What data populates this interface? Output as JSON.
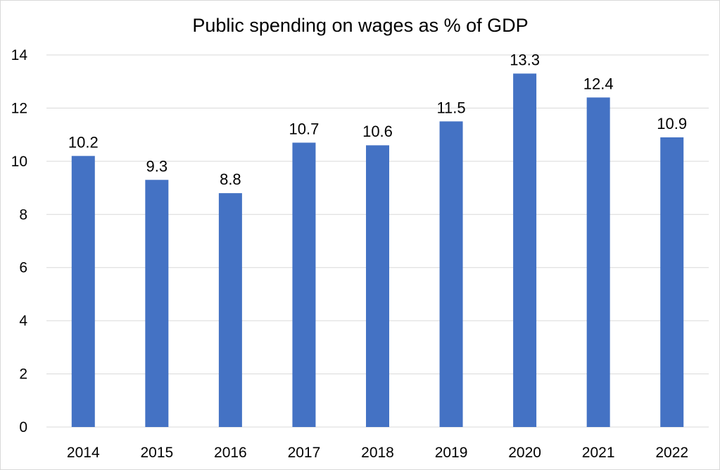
{
  "chart_data": {
    "type": "bar",
    "title": "Public spending on wages as % of GDP",
    "xlabel": "",
    "ylabel": "",
    "categories": [
      "2014",
      "2015",
      "2016",
      "2017",
      "2018",
      "2019",
      "2020",
      "2021",
      "2022"
    ],
    "values": [
      10.2,
      9.3,
      8.8,
      10.7,
      10.6,
      11.5,
      13.3,
      12.4,
      10.9
    ],
    "ylim": [
      0,
      14
    ],
    "yticks": [
      0,
      2,
      4,
      6,
      8,
      10,
      12,
      14
    ],
    "grid": true,
    "legend": "none",
    "data_labels": true,
    "bar_color": "#4472C4",
    "grid_color": "#d9d9d9"
  }
}
